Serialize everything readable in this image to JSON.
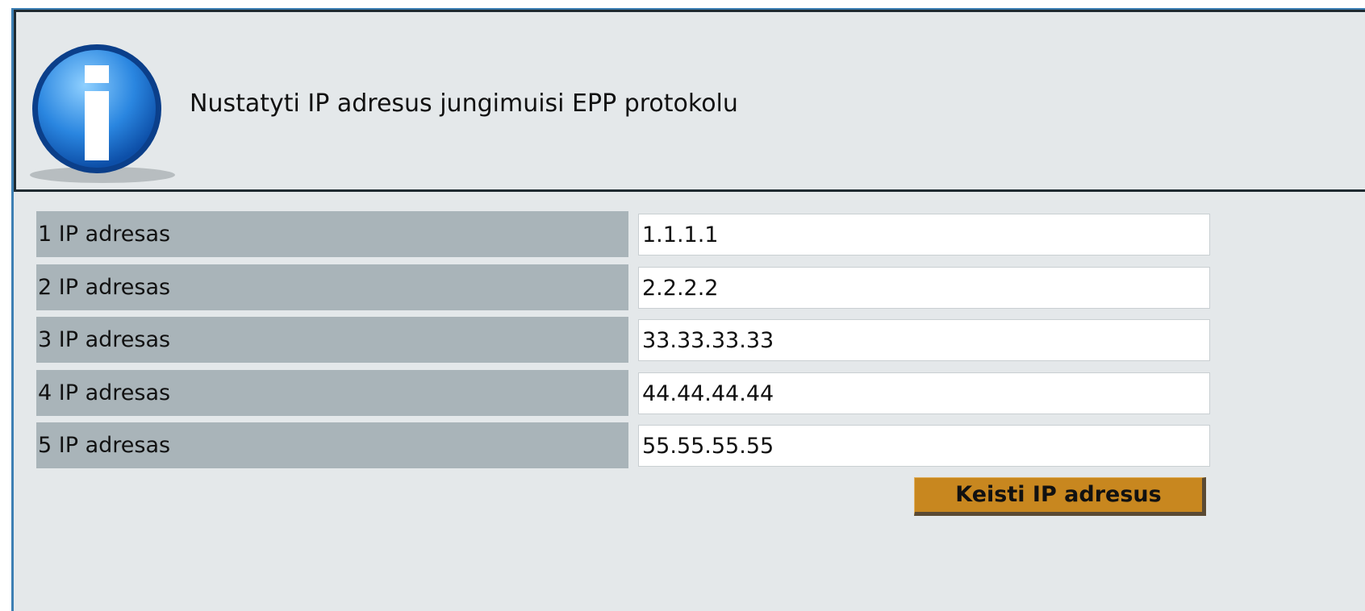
{
  "header": {
    "title": "Nustatyti IP adresus jungimuisi EPP protokolu"
  },
  "rows": [
    {
      "label": "1 IP adresas",
      "value": "1.1.1.1"
    },
    {
      "label": "2 IP adresas",
      "value": "2.2.2.2"
    },
    {
      "label": "3 IP adresas",
      "value": "33.33.33.33"
    },
    {
      "label": "4 IP adresas",
      "value": "44.44.44.44"
    },
    {
      "label": "5 IP adresas",
      "value": "55.55.55.55"
    }
  ],
  "button": {
    "label": "Keisti IP adresus"
  }
}
